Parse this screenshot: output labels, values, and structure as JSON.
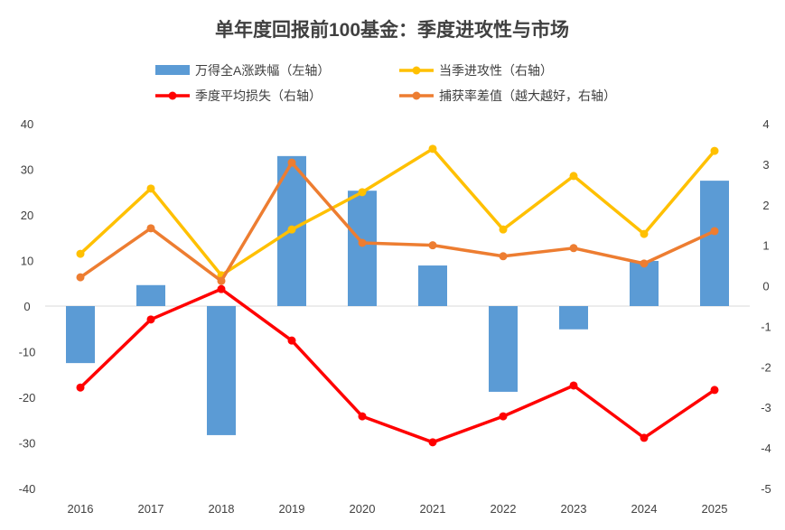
{
  "chart_data": {
    "type": "bar+line",
    "title": "单年度回报前100基金：季度进攻性与市场",
    "categories": [
      "2016",
      "2017",
      "2018",
      "2019",
      "2020",
      "2021",
      "2022",
      "2023",
      "2024",
      "2025"
    ],
    "left_axis": {
      "ylim": [
        -40,
        40
      ],
      "ticks": [
        "40",
        "30",
        "20",
        "10",
        "0",
        "-10",
        "-20",
        "-30",
        "-40"
      ]
    },
    "right_axis": {
      "ylim": [
        -5,
        4
      ],
      "ticks": [
        "4",
        "3",
        "2",
        "1",
        "0",
        "-1",
        "-2",
        "-3",
        "-4",
        "-5"
      ]
    },
    "grid": false,
    "legend_position": "top",
    "series": [
      {
        "name": "万得全A涨跌幅（左轴）",
        "type": "bar",
        "axis": "left",
        "color": "#5B9BD5",
        "values": [
          -12.5,
          4.6,
          -28.3,
          32.9,
          25.3,
          8.9,
          -18.8,
          -5.1,
          9.9,
          27.5
        ]
      },
      {
        "name": "当季进攻性（右轴）",
        "type": "line",
        "axis": "right",
        "color": "#FFC000",
        "values": [
          0.79,
          2.4,
          0.26,
          1.39,
          2.31,
          3.38,
          1.39,
          2.71,
          1.28,
          3.33
        ]
      },
      {
        "name": "季度平均损失（右轴）",
        "type": "line",
        "axis": "right",
        "color": "#FF0000",
        "values": [
          -2.51,
          -0.83,
          -0.08,
          -1.35,
          -3.22,
          -3.86,
          -3.22,
          -2.46,
          -3.75,
          -2.57
        ]
      },
      {
        "name": "捕获率差值（越大越好，右轴）",
        "type": "line",
        "axis": "right",
        "color": "#ED7D31",
        "values": [
          0.21,
          1.42,
          0.12,
          3.04,
          1.06,
          1.0,
          0.73,
          0.93,
          0.55,
          1.35
        ]
      }
    ]
  }
}
